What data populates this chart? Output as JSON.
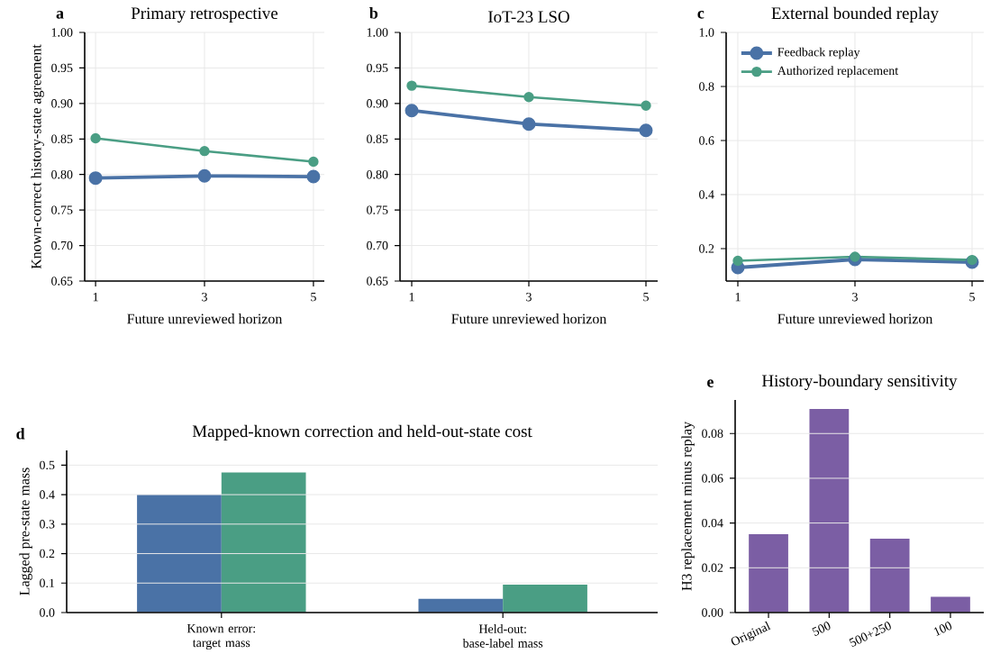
{
  "chart_data": [
    {
      "type": "line",
      "title": "Primary retrospective",
      "annotations": [
        "a"
      ],
      "xlabel": "Future unreviewed horizon",
      "ylabel": "Known-correct history-state agreement",
      "x": [
        1,
        3,
        5
      ],
      "xlim": [
        0.8,
        5.2
      ],
      "xticks": [
        1,
        3,
        5
      ],
      "ylim": [
        0.65,
        1.0
      ],
      "yticks": [
        0.65,
        {
          "value": 0.7,
          "label": "0.70"
        },
        0.75,
        {
          "value": 0.8,
          "label": "0.80"
        },
        0.85,
        {
          "value": 0.9,
          "label": "0.90"
        },
        0.95,
        {
          "value": 1.0,
          "label": "1.00"
        }
      ],
      "grid": true,
      "marker": "circle",
      "series": [
        {
          "color": "#4a72a6",
          "values": [
            0.795,
            0.798,
            0.797
          ]
        },
        {
          "color": "#4a9e84",
          "values": [
            0.851,
            0.833,
            0.818
          ]
        }
      ]
    },
    {
      "type": "line",
      "title": "IoT-23 LSO",
      "annotations": [
        "b"
      ],
      "xlabel": "Future unreviewed horizon",
      "x": [
        1,
        3,
        5
      ],
      "xlim": [
        0.8,
        5.2
      ],
      "xticks": [
        1,
        3,
        5
      ],
      "ylim": [
        0.65,
        1.0
      ],
      "yticks": [
        0.65,
        {
          "value": 0.7,
          "label": "0.70"
        },
        0.75,
        {
          "value": 0.8,
          "label": "0.80"
        },
        0.85,
        {
          "value": 0.9,
          "label": "0.90"
        },
        0.95,
        {
          "value": 1.0,
          "label": "1.00"
        }
      ],
      "grid": true,
      "marker": "circle",
      "series": [
        {
          "color": "#4a72a6",
          "values": [
            0.89,
            0.871,
            0.862
          ]
        },
        {
          "color": "#4a9e84",
          "values": [
            0.925,
            0.909,
            0.897
          ]
        }
      ]
    },
    {
      "type": "line",
      "title": "External bounded replay",
      "annotations": [
        "c"
      ],
      "xlabel": "Future unreviewed horizon",
      "x": [
        1,
        3,
        5
      ],
      "xlim": [
        0.8,
        5.2
      ],
      "xticks": [
        1,
        3,
        5
      ],
      "ylim": [
        0.08,
        1.0
      ],
      "yticks": [
        0.2,
        0.4,
        0.6,
        0.8,
        {
          "value": 1.0,
          "label": "1.0"
        }
      ],
      "grid": true,
      "marker": "circle",
      "legend": "top left",
      "series": [
        {
          "name": "Feedback replay",
          "color": "#4a72a6",
          "values": [
            0.13,
            0.16,
            0.15
          ]
        },
        {
          "name": "Authorized replacement",
          "color": "#4a9e84",
          "values": [
            0.155,
            0.17,
            0.158
          ]
        }
      ]
    },
    {
      "type": "bar",
      "title": "Mapped-known correction and held-out-state cost",
      "annotations": [
        "d"
      ],
      "ylabel": "Lagged pre-state mass",
      "categories": [
        "Known error: target mass",
        "Held-out: base-label mass"
      ],
      "ylim": [
        0,
        0.55
      ],
      "yticks": [
        {
          "value": 0,
          "label": "0.0"
        },
        0.1,
        0.2,
        0.3,
        0.4,
        0.5
      ],
      "grid": "y",
      "series": [
        {
          "color": "#4a72a6",
          "values": [
            0.4,
            0.047
          ]
        },
        {
          "color": "#4a9e84",
          "values": [
            0.475,
            0.095
          ]
        }
      ]
    },
    {
      "type": "bar",
      "title": "History-boundary sensitivity",
      "annotations": [
        "e"
      ],
      "ylabel": "H3 replacement minus replay",
      "categories": [
        "Original",
        "500",
        "500+250",
        "100"
      ],
      "ylim": [
        0,
        0.095
      ],
      "yticks": [
        {
          "value": 0,
          "label": "0.00"
        },
        0.02,
        0.04,
        0.06,
        0.08
      ],
      "grid": "y",
      "series": [
        {
          "color": "#7b5ea4",
          "values": [
            0.035,
            0.091,
            0.033,
            0.007
          ]
        }
      ]
    }
  ]
}
